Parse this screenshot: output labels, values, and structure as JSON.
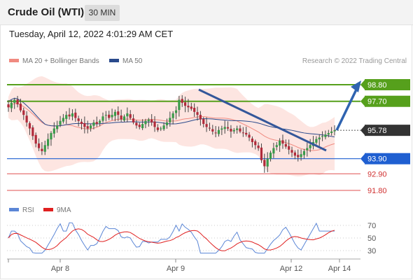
{
  "header": {
    "title": "Crude Oil (WTI)",
    "timeframe": "30 MIN",
    "timestamp": "Tuesday, April 12, 2022 4:01:29 AM CET"
  },
  "legend": {
    "ma20_label": "MA 20 + Bollinger Bands",
    "ma50_label": "MA 50",
    "credit": "Research © 2022 Trading Central",
    "ma20_color": "#f08a80",
    "ma50_color": "#2a4a8c",
    "band_color": "#fde0dc"
  },
  "rsi_legend": {
    "rsi_label": "RSI",
    "ma9_label": "9MA",
    "rsi_color": "#5b86d6",
    "ma9_color": "#e02020"
  },
  "chart_data": [
    {
      "type": "candlestick",
      "x_ticks": [
        "Apr 8",
        "Apr 9",
        "Apr 12",
        "Apr 14"
      ],
      "levels": [
        {
          "value": 98.8,
          "label": "98.80",
          "kind": "resistance",
          "color": "#56a01c"
        },
        {
          "value": 97.7,
          "label": "97.70",
          "kind": "resistance",
          "color": "#56a01c"
        },
        {
          "value": 95.78,
          "label": "95.78",
          "kind": "last-price",
          "color": "#333333"
        },
        {
          "value": 93.9,
          "label": "93.90",
          "kind": "pivot",
          "color": "#1f5fd1"
        },
        {
          "value": 92.9,
          "label": "92.90",
          "kind": "support",
          "color": "#e05050"
        },
        {
          "value": 91.8,
          "label": "91.80",
          "kind": "support",
          "color": "#e05050"
        }
      ],
      "close_approx": [
        97.3,
        97.6,
        97.8,
        97.5,
        97.1,
        96.8,
        96.3,
        95.9,
        95.4,
        94.9,
        94.6,
        94.4,
        94.8,
        95.2,
        95.6,
        95.9,
        96.1,
        96.4,
        96.6,
        96.8,
        96.7,
        96.9,
        96.6,
        96.4,
        96.2,
        96.0,
        95.9,
        96.1,
        96.3,
        96.2,
        96.4,
        96.7,
        96.8,
        96.6,
        96.8,
        97.0,
        96.8,
        96.5,
        96.7,
        96.9,
        96.6,
        96.3,
        96.1,
        96.0,
        96.2,
        96.4,
        96.5,
        96.3,
        96.0,
        95.8,
        95.9,
        96.1,
        96.3,
        96.6,
        96.9,
        97.1,
        97.8,
        97.6,
        97.4,
        97.3,
        97.2,
        97.0,
        96.8,
        96.5,
        96.2,
        96.0,
        95.9,
        95.7,
        95.6,
        95.8,
        95.9,
        96.0,
        95.9,
        95.7,
        95.8,
        95.9,
        95.7,
        95.6,
        95.5,
        95.3,
        95.0,
        94.8,
        94.6,
        93.8,
        93.4,
        93.9,
        94.3,
        94.6,
        94.8,
        95.1,
        94.9,
        94.7,
        94.5,
        94.3,
        94.1,
        94.0,
        94.2,
        94.4,
        94.6,
        94.8,
        95.0,
        95.2,
        95.3,
        95.4,
        95.5,
        95.6,
        95.7,
        95.78
      ],
      "rsi_ticks": [
        70,
        50,
        30
      ]
    }
  ]
}
